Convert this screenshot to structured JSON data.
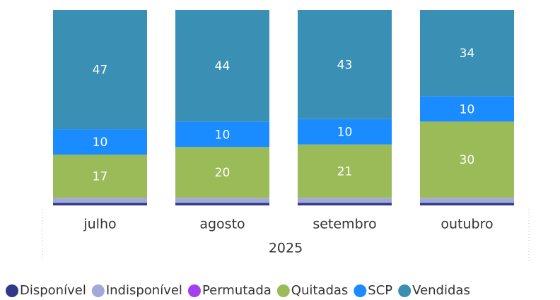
{
  "chart_data": {
    "type": "stacked_bar",
    "categories": [
      "julho",
      "agosto",
      "setembro",
      "outubro"
    ],
    "x_label": "2025",
    "series": [
      {
        "name": "Disponível",
        "color": "#2e3a87",
        "values": [
          1,
          1,
          1,
          1
        ]
      },
      {
        "name": "Indisponível",
        "color": "#a3a8d9",
        "values": [
          2,
          2,
          2,
          2
        ]
      },
      {
        "name": "Permutada",
        "color": "#a23ff0",
        "values": [
          0,
          0,
          0,
          0
        ]
      },
      {
        "name": "Quitadas",
        "color": "#9bbb59",
        "values": [
          17,
          20,
          21,
          30
        ]
      },
      {
        "name": "SCP",
        "color": "#1a8cff",
        "values": [
          10,
          10,
          10,
          10
        ]
      },
      {
        "name": "Vendidas",
        "color": "#3a8fb5",
        "values": [
          47,
          44,
          43,
          34
        ]
      }
    ],
    "ylim": [
      0,
      77
    ],
    "legend": "bottom"
  }
}
